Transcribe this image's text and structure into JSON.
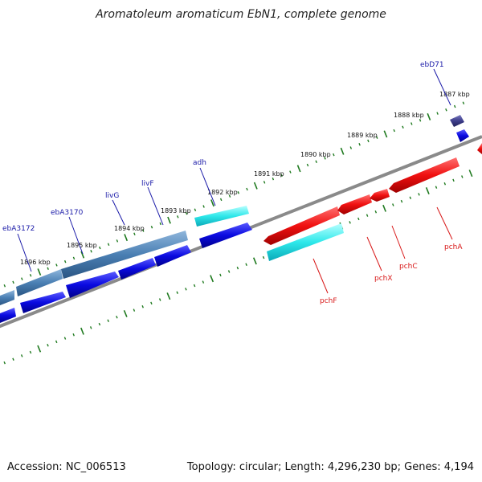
{
  "title": "Aromatoleum aromaticum EbN1, complete genome",
  "footer": {
    "accession": "Accession: NC_006513",
    "topology": "Topology: circular; Length: 4,296,230 bp; Genes: 4,194"
  },
  "kbp_labels": [
    "1887 kbp",
    "1888 kbp",
    "1889 kbp",
    "1890 kbp",
    "1891 kbp",
    "1892 kbp",
    "1893 kbp",
    "1894 kbp",
    "1895 kbp",
    "1896 kbp"
  ],
  "gene_labels": {
    "top": [
      "ebD71",
      "adh",
      "livF",
      "livG",
      "ebA3170",
      "ebA3172"
    ],
    "bottom": [
      "pchA",
      "pchC",
      "pchX",
      "pchF"
    ]
  },
  "colors": {
    "label_top": "#1a1aa8",
    "label_bottom": "#d81818",
    "backbone": "#8a8a8a",
    "tick": "#1f7a1f",
    "cds_blue": "#0a0ae0",
    "cds_steel": "#4a7fb3",
    "cds_cyan": "#2ee8ea",
    "cds_red": "#f01010",
    "cds_navy": "#3d3d8a"
  }
}
